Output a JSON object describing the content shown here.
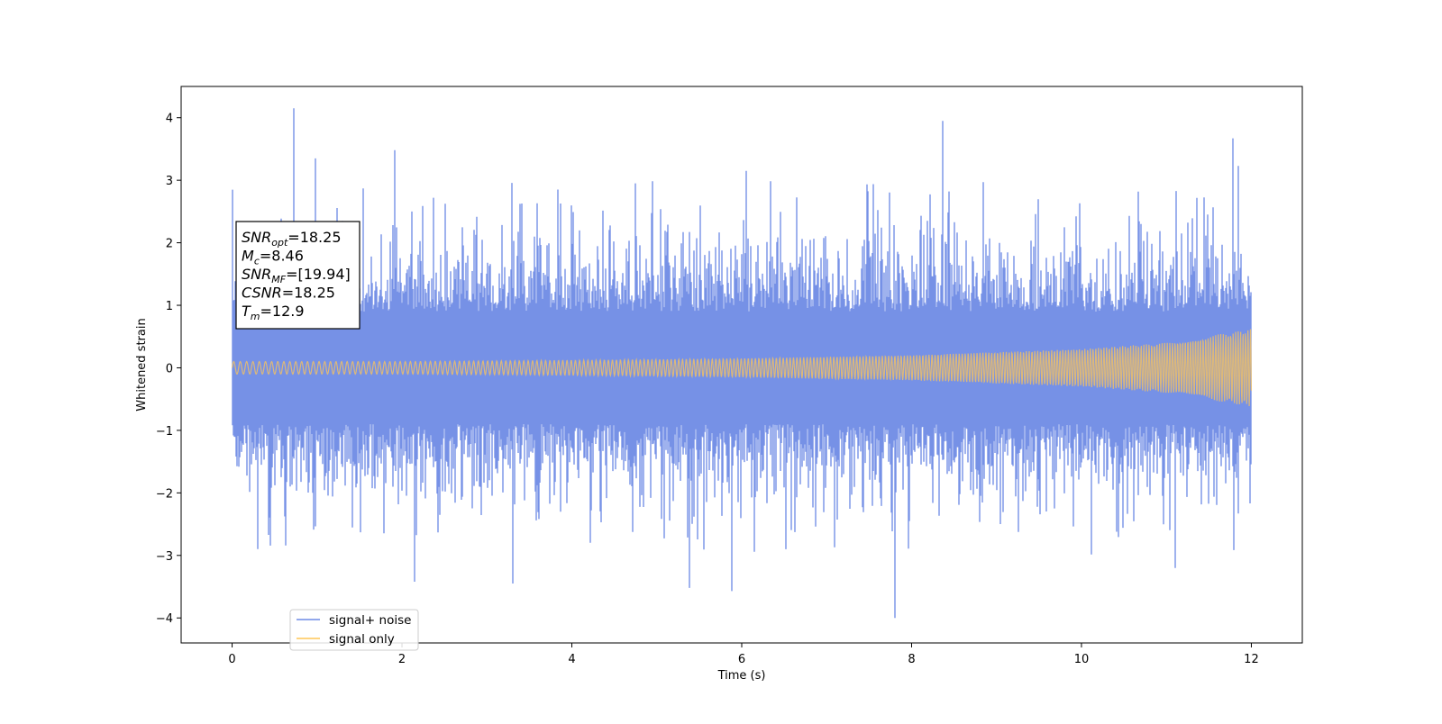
{
  "chart_data": {
    "type": "line",
    "title": "",
    "xlabel": "Time (s)",
    "ylabel": "Whitened strain",
    "xlim": [
      -0.6,
      12.6
    ],
    "ylim": [
      -4.4,
      4.5
    ],
    "x_ticks": [
      "0",
      "2",
      "4",
      "6",
      "8",
      "10",
      "12"
    ],
    "x_tick_values": [
      0,
      2,
      4,
      6,
      8,
      10,
      12
    ],
    "y_ticks": [
      "−4",
      "−3",
      "−2",
      "−1",
      "0",
      "1",
      "2",
      "3",
      "4"
    ],
    "y_tick_values": [
      -4,
      -3,
      -2,
      -1,
      0,
      1,
      2,
      3,
      4
    ],
    "grid": false,
    "legend_position": "lower-left",
    "series": [
      {
        "name": "signal+ noise",
        "color": "#6f8be5",
        "x_range": [
          0,
          12
        ],
        "typical_envelope": [
          -1.7,
          1.8
        ],
        "peak_points": [
          {
            "x": 0.0,
            "y": 2.85
          },
          {
            "x": 0.73,
            "y": 4.15
          },
          {
            "x": 0.3,
            "y": -2.9
          },
          {
            "x": 0.98,
            "y": 3.35
          },
          {
            "x": 1.92,
            "y": 3.48
          },
          {
            "x": 2.15,
            "y": -3.42
          },
          {
            "x": 3.3,
            "y": -3.45
          },
          {
            "x": 5.38,
            "y": -3.52
          },
          {
            "x": 5.88,
            "y": -3.57
          },
          {
            "x": 6.05,
            "y": 3.15
          },
          {
            "x": 7.8,
            "y": -4.0
          },
          {
            "x": 8.37,
            "y": 3.95
          },
          {
            "x": 11.78,
            "y": 3.67
          },
          {
            "x": 11.85,
            "y": 3.23
          },
          {
            "x": 11.1,
            "y": -3.2
          }
        ]
      },
      {
        "name": "signal only",
        "color": "#ffc555",
        "x_range": [
          0,
          12
        ],
        "amplitude_envelope": [
          {
            "x": 0,
            "y": 0.1
          },
          {
            "x": 2,
            "y": 0.1
          },
          {
            "x": 4,
            "y": 0.12
          },
          {
            "x": 6,
            "y": 0.15
          },
          {
            "x": 8,
            "y": 0.2
          },
          {
            "x": 10,
            "y": 0.3
          },
          {
            "x": 11,
            "y": 0.4
          },
          {
            "x": 12,
            "y": 0.62
          }
        ]
      }
    ],
    "annotation": {
      "lines": [
        {
          "base": "SNR",
          "sub": "opt",
          "value": "=18.25"
        },
        {
          "base": "M",
          "sub": "c",
          "value": "=8.46"
        },
        {
          "base": "SNR",
          "sub": "MF",
          "value": "=[19.94]"
        },
        {
          "base": "CSNR",
          "sub": "",
          "value": "=18.25"
        },
        {
          "base": "T",
          "sub": "m",
          "value": "=12.9"
        }
      ]
    }
  }
}
